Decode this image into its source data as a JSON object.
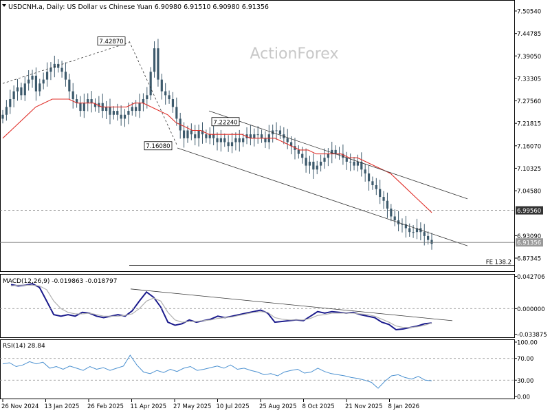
{
  "header": {
    "instrument": "USDCNH.a, Daily:  US Dollar vs Chinese Yuan  6.90980 6.91510 6.90980 6.91356",
    "watermark": "ActionForex"
  },
  "colors": {
    "candle": "#3d5a6c",
    "ma_line": "#e0302a",
    "macd_line": "#1a1a8c",
    "macd_signal": "#b0b0b0",
    "rsi_line": "#4a90d0",
    "trend_line": "#333333",
    "axis": "#000000",
    "level_line": "#555555"
  },
  "icons": {
    "instrument_marker": "triangle-down-icon"
  },
  "chart_data": [
    {
      "type": "candlestick",
      "title": "USDCNH.a, Daily:  US Dollar vs Chinese Yuan  6.90980 6.91510 6.90980 6.91356",
      "ylim": [
        6.84,
        7.53
      ],
      "y_ticks": [
        7.5054,
        7.44785,
        7.3905,
        7.33305,
        7.2756,
        7.21815,
        7.1607,
        7.10325,
        7.0458,
        6.9309,
        6.87345
      ],
      "y_tick_labels": [
        "7.50540",
        "7.44785",
        "7.39050",
        "7.33305",
        "7.27560",
        "7.21815",
        "7.16070",
        "7.10325",
        "7.04580",
        "6.93090",
        "6.87345"
      ],
      "x_tick_labels": [
        "26 Nov 2024",
        "13 Jan 2025",
        "26 Feb 2025",
        "11 Apr 2025",
        "27 May 2025",
        "10 Jul 2025",
        "25 Aug 2025",
        "8 Oct 2025",
        "21 Nov 2025",
        "8 Jan 2026"
      ],
      "close_series": [
        7.24,
        7.26,
        7.28,
        7.3,
        7.31,
        7.29,
        7.32,
        7.33,
        7.34,
        7.3,
        7.32,
        7.33,
        7.35,
        7.36,
        7.37,
        7.36,
        7.35,
        7.33,
        7.3,
        7.28,
        7.27,
        7.25,
        7.27,
        7.28,
        7.27,
        7.26,
        7.27,
        7.25,
        7.26,
        7.24,
        7.25,
        7.24,
        7.23,
        7.24,
        7.25,
        7.26,
        7.25,
        7.27,
        7.28,
        7.29,
        7.35,
        7.41,
        7.33,
        7.3,
        7.29,
        7.28,
        7.26,
        7.23,
        7.2,
        7.18,
        7.2,
        7.19,
        7.18,
        7.2,
        7.19,
        7.18,
        7.19,
        7.18,
        7.17,
        7.18,
        7.17,
        7.16,
        7.17,
        7.18,
        7.17,
        7.18,
        7.19,
        7.18,
        7.19,
        7.19,
        7.18,
        7.17,
        7.19,
        7.2,
        7.2,
        7.19,
        7.18,
        7.17,
        7.16,
        7.15,
        7.14,
        7.13,
        7.11,
        7.12,
        7.1,
        7.11,
        7.12,
        7.13,
        7.14,
        7.15,
        7.14,
        7.14,
        7.13,
        7.12,
        7.12,
        7.11,
        7.12,
        7.1,
        7.09,
        7.07,
        7.06,
        7.05,
        7.03,
        7.02,
        7.0,
        6.98,
        6.97,
        6.96,
        6.96,
        6.95,
        6.94,
        6.94,
        6.95,
        6.94,
        6.93,
        6.92,
        6.91
      ],
      "ma_series": [
        7.18,
        7.2,
        7.22,
        7.24,
        7.26,
        7.27,
        7.28,
        7.28,
        7.28,
        7.27,
        7.27,
        7.27,
        7.26,
        7.26,
        7.26,
        7.26,
        7.27,
        7.27,
        7.26,
        7.25,
        7.24,
        7.22,
        7.21,
        7.2,
        7.2,
        7.19,
        7.19,
        7.19,
        7.19,
        7.19,
        7.18,
        7.18,
        7.18,
        7.18,
        7.17,
        7.16,
        7.15,
        7.15,
        7.14,
        7.14,
        7.14,
        7.14,
        7.13,
        7.13,
        7.12,
        7.11,
        7.1,
        7.09,
        7.07,
        7.05,
        7.03,
        7.01,
        6.99
      ],
      "trend_lines": [
        {
          "name": "upper-channel",
          "from": [
            "27 May 2025",
            7.25
          ],
          "to": [
            "8 Jan 2026+",
            7.025
          ]
        },
        {
          "name": "lower-channel",
          "from": [
            "11 Apr 2025",
            7.155
          ],
          "to": [
            "8 Jan 2026+",
            6.905
          ]
        },
        {
          "name": "dashed-rise",
          "from": [
            "26 Nov 2024",
            7.32
          ],
          "to": [
            "26 Feb 2025",
            7.425
          ]
        }
      ],
      "labels": [
        {
          "text": "7.42870",
          "value": 7.4287
        },
        {
          "text": "7.22240",
          "value": 7.2224
        },
        {
          "text": "7.16080",
          "value": 7.1608
        }
      ],
      "levels": [
        {
          "label": "6.99560",
          "value": 6.9956,
          "style": "dashed",
          "highlight": true
        },
        {
          "label": "6.91356",
          "value": 6.91356,
          "style": "solid",
          "highlight": true
        },
        {
          "label": "FE 138.2",
          "value": 6.855,
          "style": "solid",
          "highlight": false
        }
      ]
    },
    {
      "type": "line",
      "title": "MACD(12,26,9) -0.019863 -0.018797",
      "ylim": [
        -0.038,
        0.045
      ],
      "y_tick_labels": [
        "0.042706",
        "0.000000",
        "-0.033875"
      ],
      "y_ticks": [
        0.042706,
        0.0,
        -0.033875
      ],
      "series": [
        {
          "name": "MACD",
          "values": [
            0.032,
            0.03,
            0.031,
            0.033,
            0.028,
            0.01,
            -0.008,
            -0.01,
            -0.008,
            -0.01,
            -0.005,
            -0.006,
            -0.01,
            -0.012,
            -0.01,
            -0.008,
            -0.01,
            -0.003,
            0.01,
            0.022,
            0.015,
            0.002,
            -0.018,
            -0.022,
            -0.02,
            -0.015,
            -0.018,
            -0.016,
            -0.014,
            -0.01,
            -0.012,
            -0.01,
            -0.008,
            -0.006,
            -0.004,
            -0.002,
            -0.006,
            -0.018,
            -0.017,
            -0.016,
            -0.015,
            -0.016,
            -0.01,
            -0.004,
            -0.006,
            -0.004,
            -0.005,
            -0.006,
            -0.005,
            -0.008,
            -0.01,
            -0.012,
            -0.018,
            -0.021,
            -0.028,
            -0.027,
            -0.025,
            -0.023,
            -0.02,
            -0.019
          ]
        },
        {
          "name": "Signal",
          "values": [
            0.03,
            0.031,
            0.031,
            0.031,
            0.03,
            0.025,
            0.01,
            0.0,
            -0.005,
            -0.007,
            -0.007,
            -0.006,
            -0.008,
            -0.01,
            -0.01,
            -0.01,
            -0.009,
            -0.007,
            0.0,
            0.01,
            0.014,
            0.01,
            -0.005,
            -0.015,
            -0.018,
            -0.017,
            -0.017,
            -0.016,
            -0.015,
            -0.013,
            -0.012,
            -0.011,
            -0.009,
            -0.007,
            -0.005,
            -0.004,
            -0.005,
            -0.012,
            -0.014,
            -0.015,
            -0.015,
            -0.015,
            -0.013,
            -0.009,
            -0.008,
            -0.006,
            -0.006,
            -0.006,
            -0.006,
            -0.007,
            -0.008,
            -0.01,
            -0.014,
            -0.018,
            -0.023,
            -0.025,
            -0.025,
            -0.024,
            -0.022,
            -0.019
          ]
        }
      ],
      "trend_lines": [
        {
          "name": "macd-trendline",
          "from": [
            0.026,
            0
          ],
          "to": [
            -0.016,
            1
          ]
        }
      ]
    },
    {
      "type": "line",
      "title": "RSI(14) 28.84",
      "ylim": [
        0,
        100
      ],
      "y_ticks": [
        100,
        70,
        30,
        0
      ],
      "y_tick_labels": [
        "100.00",
        "70.00",
        "30.00",
        "0.00"
      ],
      "series": [
        {
          "name": "RSI",
          "values": [
            60,
            62,
            55,
            58,
            64,
            60,
            63,
            52,
            55,
            50,
            56,
            52,
            48,
            55,
            50,
            53,
            48,
            52,
            56,
            76,
            58,
            45,
            42,
            48,
            44,
            50,
            46,
            52,
            55,
            48,
            50,
            53,
            56,
            52,
            58,
            50,
            52,
            48,
            45,
            40,
            42,
            38,
            45,
            48,
            50,
            43,
            45,
            52,
            46,
            42,
            40,
            38,
            35,
            33,
            30,
            26,
            15,
            28,
            38,
            40,
            35,
            32,
            37,
            30,
            28.84
          ]
        }
      ]
    }
  ]
}
